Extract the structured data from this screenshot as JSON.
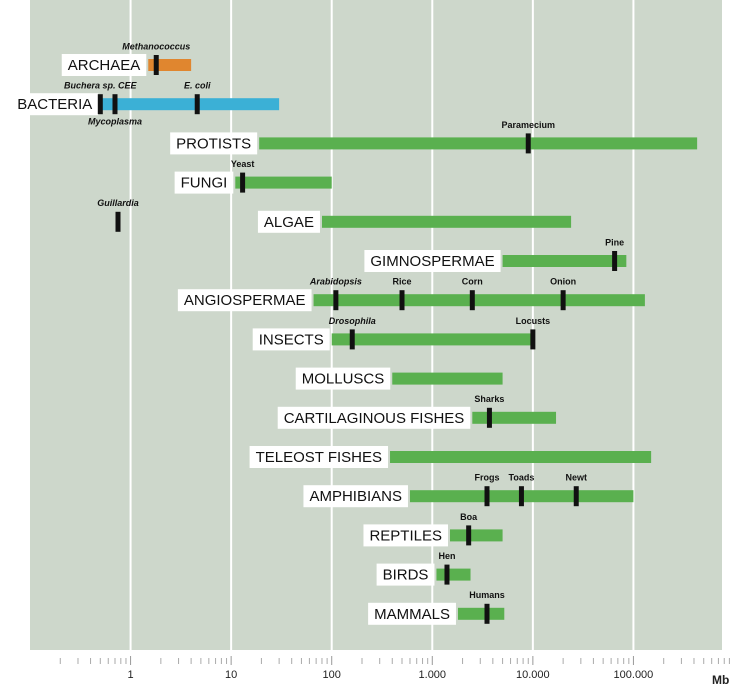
{
  "chart_data": {
    "type": "range_bar",
    "xlabel": "Mb",
    "xscale": "log",
    "grid": true,
    "xlim": [
      0.1,
      1000000
    ],
    "xticks": [
      1,
      10,
      100,
      {
        "value": 1000,
        "label": "1.000"
      },
      {
        "value": 10000,
        "label": "10.000"
      },
      {
        "value": 100000,
        "label": "100.000"
      }
    ],
    "xminorticks": [
      0.2,
      0.3,
      0.4,
      0.5,
      0.6,
      0.7,
      0.8,
      0.9,
      2,
      3,
      4,
      5,
      6,
      7,
      8,
      9,
      20,
      30,
      40,
      50,
      60,
      70,
      80,
      90,
      200,
      300,
      400,
      500,
      600,
      700,
      800,
      900,
      2000,
      3000,
      4000,
      5000,
      6000,
      7000,
      8000,
      9000,
      20000,
      30000,
      40000,
      50000,
      60000,
      70000,
      80000,
      90000,
      200000,
      300000,
      400000,
      500000,
      600000,
      700000,
      800000,
      900000
    ],
    "groups": [
      {
        "name": "ARCHAEA",
        "color": "#e0862f",
        "range": [
          1.5,
          4
        ],
        "markers": [
          {
            "name": "Methanococcus",
            "value": 1.8,
            "italic": true
          }
        ]
      },
      {
        "name": "BACTERIA",
        "color": "#3bb0d6",
        "range": [
          0.5,
          30
        ],
        "markers": [
          {
            "name": "Buchera sp. CEE",
            "value": 0.5,
            "italic": true
          },
          {
            "name": "Mycoplasma",
            "value": 0.7,
            "italic": true,
            "label_side": "below"
          },
          {
            "name": "E. coli",
            "value": 4.6,
            "italic": true
          }
        ]
      },
      {
        "name": "PROTISTS",
        "color": "#5ab04f",
        "range": [
          19,
          430000
        ],
        "markers": [
          {
            "name": "Paramecium",
            "value": 9000
          }
        ]
      },
      {
        "name": "FUNGI",
        "color": "#5ab04f",
        "range": [
          11,
          100
        ],
        "markers": [
          {
            "name": "Yeast",
            "value": 13
          }
        ]
      },
      {
        "name": "ALGAE",
        "color": "#5ab04f",
        "range": [
          80,
          24000
        ],
        "markers": [
          {
            "name": "Guillardia",
            "value": 0.75,
            "italic": true
          }
        ]
      },
      {
        "name": "GIMNOSPERMAE",
        "color": "#5ab04f",
        "range": [
          5000,
          85000
        ],
        "markers": [
          {
            "name": "Pine",
            "value": 65000
          }
        ]
      },
      {
        "name": "ANGIOSPERMAE",
        "color": "#5ab04f",
        "range": [
          66,
          130000
        ],
        "markers": [
          {
            "name": "Arabidopsis",
            "value": 110,
            "italic": true
          },
          {
            "name": "Rice",
            "value": 500
          },
          {
            "name": "Corn",
            "value": 2500
          },
          {
            "name": "Onion",
            "value": 20000
          }
        ]
      },
      {
        "name": "INSECTS",
        "color": "#5ab04f",
        "range": [
          100,
          10000
        ],
        "markers": [
          {
            "name": "Drosophila",
            "value": 160,
            "italic": true
          },
          {
            "name": "Locusts",
            "value": 10000
          }
        ]
      },
      {
        "name": "MOLLUSCS",
        "color": "#5ab04f",
        "range": [
          400,
          5000
        ],
        "markers": []
      },
      {
        "name": "CARTILAGINOUS FISHES",
        "color": "#5ab04f",
        "range": [
          2500,
          17000
        ],
        "markers": [
          {
            "name": "Sharks",
            "value": 3700
          }
        ]
      },
      {
        "name": "TELEOST FISHES",
        "color": "#5ab04f",
        "range": [
          380,
          150000
        ],
        "markers": []
      },
      {
        "name": "AMPHIBIANS",
        "color": "#5ab04f",
        "range": [
          600,
          100000
        ],
        "markers": [
          {
            "name": "Frogs",
            "value": 3500
          },
          {
            "name": "Toads",
            "value": 7700
          },
          {
            "name": "Newt",
            "value": 27000
          }
        ]
      },
      {
        "name": "REPTILES",
        "color": "#5ab04f",
        "range": [
          1500,
          5000
        ],
        "markers": [
          {
            "name": "Boa",
            "value": 2300
          }
        ]
      },
      {
        "name": "BIRDS",
        "color": "#5ab04f",
        "range": [
          1100,
          2400
        ],
        "markers": [
          {
            "name": "Hen",
            "value": 1400
          }
        ]
      },
      {
        "name": "MAMMALS",
        "color": "#5ab04f",
        "range": [
          1800,
          5200
        ],
        "markers": [
          {
            "name": "Humans",
            "value": 3500
          }
        ]
      }
    ]
  }
}
